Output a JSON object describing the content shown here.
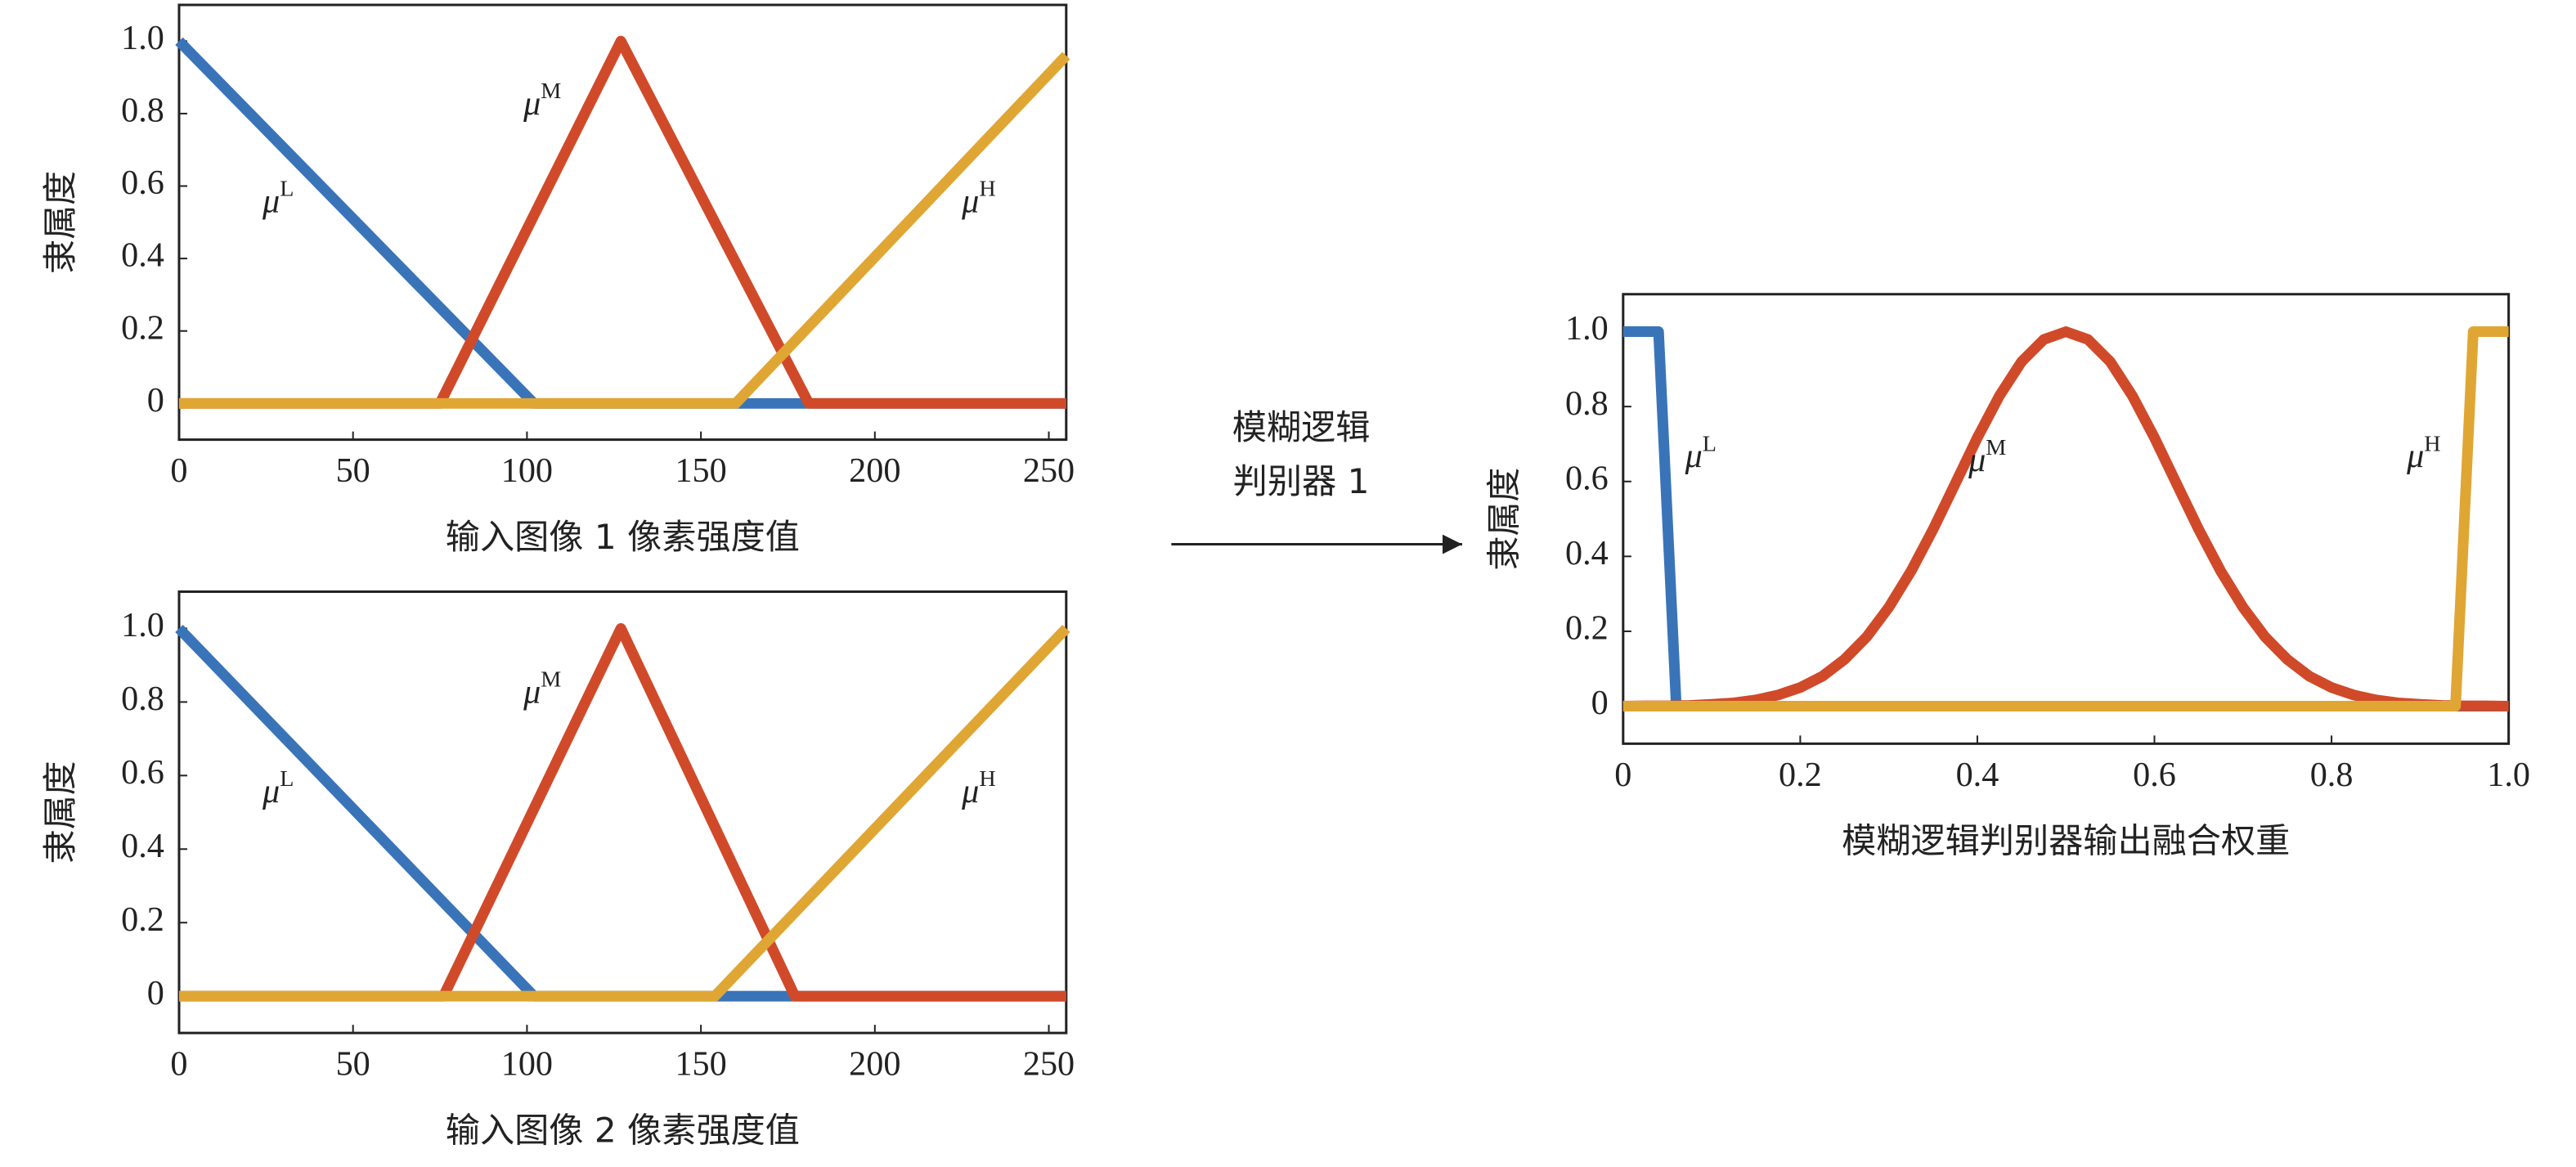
{
  "chart_data": [
    {
      "type": "line",
      "ylabel": "隶属度",
      "xlabel": "输入图像 1 像素强度值",
      "xlim": [
        0,
        255
      ],
      "ylim": [
        -0.1,
        1.1
      ],
      "xticks": [
        0,
        50,
        100,
        150,
        200,
        250
      ],
      "yticks": [
        0,
        0.2,
        0.4,
        0.6,
        0.8,
        {
          "value": 1,
          "label": "1.0"
        }
      ],
      "series": [
        {
          "name": "μ",
          "sup": "L",
          "color": "#3a74b8",
          "x": [
            0,
            102,
            255
          ],
          "values": [
            1,
            0,
            0
          ]
        },
        {
          "name": "μ",
          "sup": "M",
          "color": "#d04a2a",
          "x": [
            0,
            75,
            127,
            181,
            255
          ],
          "values": [
            0,
            0,
            1,
            0,
            0
          ]
        },
        {
          "name": "μ",
          "sup": "H",
          "color": "#e0a634",
          "x": [
            0,
            160,
            255
          ],
          "values": [
            0,
            0,
            0.96
          ]
        }
      ]
    },
    {
      "type": "line",
      "ylabel": "隶属度",
      "xlabel": "输入图像 2 像素强度值",
      "xlim": [
        0,
        255
      ],
      "ylim": [
        -0.1,
        1.1
      ],
      "xticks": [
        0,
        50,
        100,
        150,
        200,
        250
      ],
      "yticks": [
        0,
        0.2,
        0.4,
        0.6,
        0.8,
        {
          "value": 1,
          "label": "1.0"
        }
      ],
      "series": [
        {
          "name": "μ",
          "sup": "L",
          "color": "#3a74b8",
          "x": [
            0,
            102,
            255
          ],
          "values": [
            1,
            0,
            0
          ]
        },
        {
          "name": "μ",
          "sup": "M",
          "color": "#d04a2a",
          "x": [
            0,
            76,
            127,
            177,
            255
          ],
          "values": [
            0,
            0,
            1,
            0,
            0
          ]
        },
        {
          "name": "μ",
          "sup": "H",
          "color": "#e0a634",
          "x": [
            0,
            154,
            255
          ],
          "values": [
            0,
            0,
            1
          ]
        }
      ]
    },
    {
      "type": "line",
      "ylabel": "隶属度",
      "xlabel": "模糊逻辑判别器输出融合权重",
      "xlim": [
        0,
        1
      ],
      "ylim": [
        -0.1,
        1.1
      ],
      "xticks": [
        0,
        0.2,
        0.4,
        0.6,
        0.8,
        {
          "value": 1,
          "label": "1.0"
        }
      ],
      "yticks": [
        0,
        0.2,
        0.4,
        0.6,
        0.8,
        {
          "value": 1,
          "label": "1.0"
        }
      ],
      "series": [
        {
          "name": "μ",
          "sup": "L",
          "color": "#3a74b8",
          "x": [
            0,
            0.04,
            0.06,
            1
          ],
          "values": [
            1,
            1,
            0,
            0
          ]
        },
        {
          "name": "μ",
          "sup": "M",
          "color": "#d04a2a",
          "x": [
            0,
            0.025,
            0.05,
            0.075,
            0.1,
            0.125,
            0.15,
            0.175,
            0.2,
            0.225,
            0.25,
            0.275,
            0.3,
            0.325,
            0.35,
            0.375,
            0.4,
            0.425,
            0.45,
            0.475,
            0.5,
            0.525,
            0.55,
            0.575,
            0.6,
            0.625,
            0.65,
            0.675,
            0.7,
            0.725,
            0.75,
            0.775,
            0.8,
            0.825,
            0.85,
            0.875,
            0.9,
            0.925,
            0.95,
            0.975,
            1
          ],
          "values": [
            0,
            0.001,
            0.001,
            0.002,
            0.005,
            0.009,
            0.017,
            0.03,
            0.05,
            0.08,
            0.125,
            0.185,
            0.264,
            0.36,
            0.472,
            0.594,
            0.717,
            0.829,
            0.92,
            0.979,
            1,
            0.979,
            0.92,
            0.829,
            0.717,
            0.594,
            0.472,
            0.36,
            0.264,
            0.185,
            0.125,
            0.08,
            0.05,
            0.03,
            0.017,
            0.009,
            0.005,
            0.002,
            0.001,
            0.001,
            0
          ]
        },
        {
          "name": "μ",
          "sup": "H",
          "color": "#e0a634",
          "x": [
            0,
            0.94,
            0.96,
            1
          ],
          "values": [
            0,
            0,
            1,
            1
          ]
        }
      ]
    }
  ],
  "arrow_label": [
    "模糊逻辑",
    "判别器 1"
  ]
}
